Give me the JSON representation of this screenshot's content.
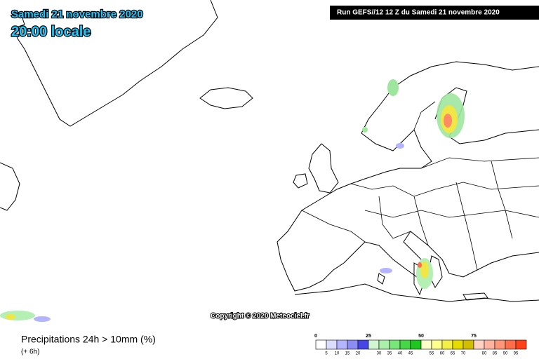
{
  "header": {
    "date": "Samedi 21 novembre 2020",
    "time": "20:00 locale",
    "run": "Run GEFS//12 12 Z du Samedi 21 novembre 2020"
  },
  "copyright": "Copyright © 2020 Meteociel.fr",
  "footer": {
    "title": "Precipitations 24h > 10mm (%)",
    "lead": "(+ 6h)"
  },
  "legend": {
    "major_labels": [
      0,
      25,
      50,
      75
    ],
    "minor_labels": [
      5,
      10,
      15,
      20,
      30,
      35,
      40,
      45,
      55,
      60,
      65,
      70,
      80,
      85,
      90,
      95
    ],
    "colors": [
      "#ffffff",
      "#dcdcff",
      "#b4b4ff",
      "#8c8cf5",
      "#4646e6",
      "#d2f5d2",
      "#aaf0aa",
      "#78e678",
      "#46d746",
      "#1ec81e",
      "#ffffc8",
      "#ffff8c",
      "#f5f046",
      "#e6dc00",
      "#d2be00",
      "#ffd2c3",
      "#ffb4a0",
      "#ff9678",
      "#ff6e4b",
      "#ff4119"
    ]
  }
}
